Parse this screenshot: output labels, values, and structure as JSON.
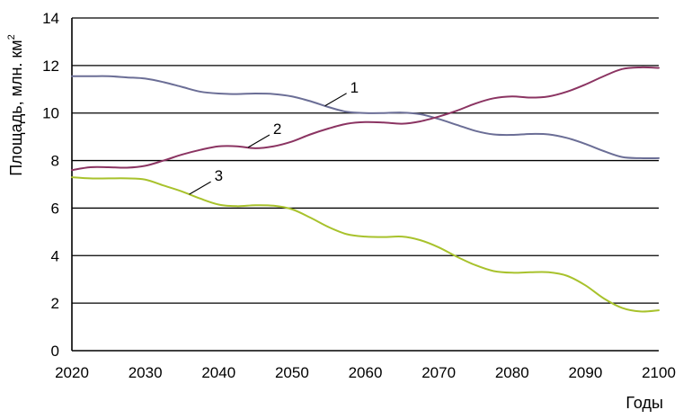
{
  "chart_data": {
    "type": "line",
    "title": "",
    "xlabel": "Годы",
    "ylabel_main": "Площадь, млн. км",
    "ylabel_sup": "2",
    "xlim": [
      2020,
      2100
    ],
    "ylim": [
      0,
      14
    ],
    "xticks": [
      "2020",
      "2030",
      "2040",
      "2050",
      "2060",
      "2070",
      "2080",
      "2090",
      "2100"
    ],
    "yticks": [
      "0",
      "2",
      "4",
      "6",
      "8",
      "10",
      "12",
      "14"
    ],
    "grid": true,
    "x": [
      2020,
      2022.5,
      2025,
      2027.5,
      2030,
      2032.5,
      2035,
      2037.5,
      2040,
      2042.5,
      2045,
      2047.5,
      2050,
      2052.5,
      2055,
      2057.5,
      2060,
      2062.5,
      2065,
      2067.5,
      2070,
      2072.5,
      2075,
      2077.5,
      2080,
      2082.5,
      2085,
      2087.5,
      2090,
      2092.5,
      2095,
      2097.5,
      2100
    ],
    "series": [
      {
        "name": "1",
        "color": "#6b6e96",
        "values": [
          11.55,
          11.55,
          11.55,
          11.5,
          11.45,
          11.3,
          11.1,
          10.9,
          10.82,
          10.8,
          10.82,
          10.8,
          10.7,
          10.5,
          10.25,
          10.05,
          10.0,
          10.0,
          10.02,
          9.95,
          9.75,
          9.5,
          9.25,
          9.1,
          9.08,
          9.12,
          9.1,
          8.95,
          8.7,
          8.4,
          8.15,
          8.1,
          8.1
        ]
      },
      {
        "name": "2",
        "color": "#8b3462",
        "values": [
          7.6,
          7.72,
          7.72,
          7.7,
          7.78,
          8.0,
          8.25,
          8.45,
          8.6,
          8.6,
          8.52,
          8.6,
          8.8,
          9.1,
          9.35,
          9.55,
          9.62,
          9.6,
          9.55,
          9.65,
          9.85,
          10.1,
          10.4,
          10.62,
          10.7,
          10.65,
          10.7,
          10.9,
          11.2,
          11.55,
          11.85,
          11.92,
          11.9
        ]
      },
      {
        "name": "3",
        "color": "#a8c22c",
        "values": [
          7.3,
          7.25,
          7.25,
          7.25,
          7.2,
          6.95,
          6.7,
          6.4,
          6.15,
          6.08,
          6.12,
          6.1,
          5.95,
          5.6,
          5.2,
          4.9,
          4.8,
          4.78,
          4.8,
          4.65,
          4.35,
          3.95,
          3.6,
          3.35,
          3.28,
          3.3,
          3.3,
          3.15,
          2.75,
          2.2,
          1.8,
          1.65,
          1.7
        ]
      }
    ],
    "annotations": [
      {
        "text": "1",
        "series": 0,
        "x": 2054.5
      },
      {
        "text": "2",
        "series": 1,
        "x": 2044
      },
      {
        "text": "3",
        "series": 2,
        "x": 2036
      }
    ]
  }
}
